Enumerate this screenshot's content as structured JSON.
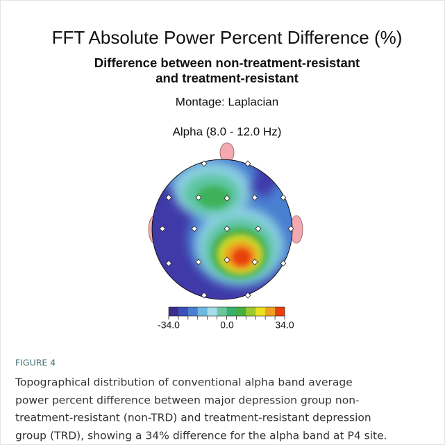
{
  "figure": {
    "title": "FFT Absolute Power Percent Difference  (%)",
    "subtitle_lines": [
      "Difference between non-treatment-resistant",
      "and treatment-resistant"
    ],
    "montage": "Montage:  Laplacian",
    "band": "Alpha (8.0 - 12.0 Hz)",
    "colorbar_labels": [
      "-34.0",
      "0.0",
      "34.0"
    ]
  },
  "caption": {
    "label": "FIGURE 4",
    "lines": [
      "Topographical distribution of conventional alpha band average",
      "power percent difference between major depression group non-",
      "treatment-resistant (non-TRD) and treatment-resistant depression",
      "group (TRD), showing a 34% difference for the alpha band at P4 site."
    ]
  }
}
